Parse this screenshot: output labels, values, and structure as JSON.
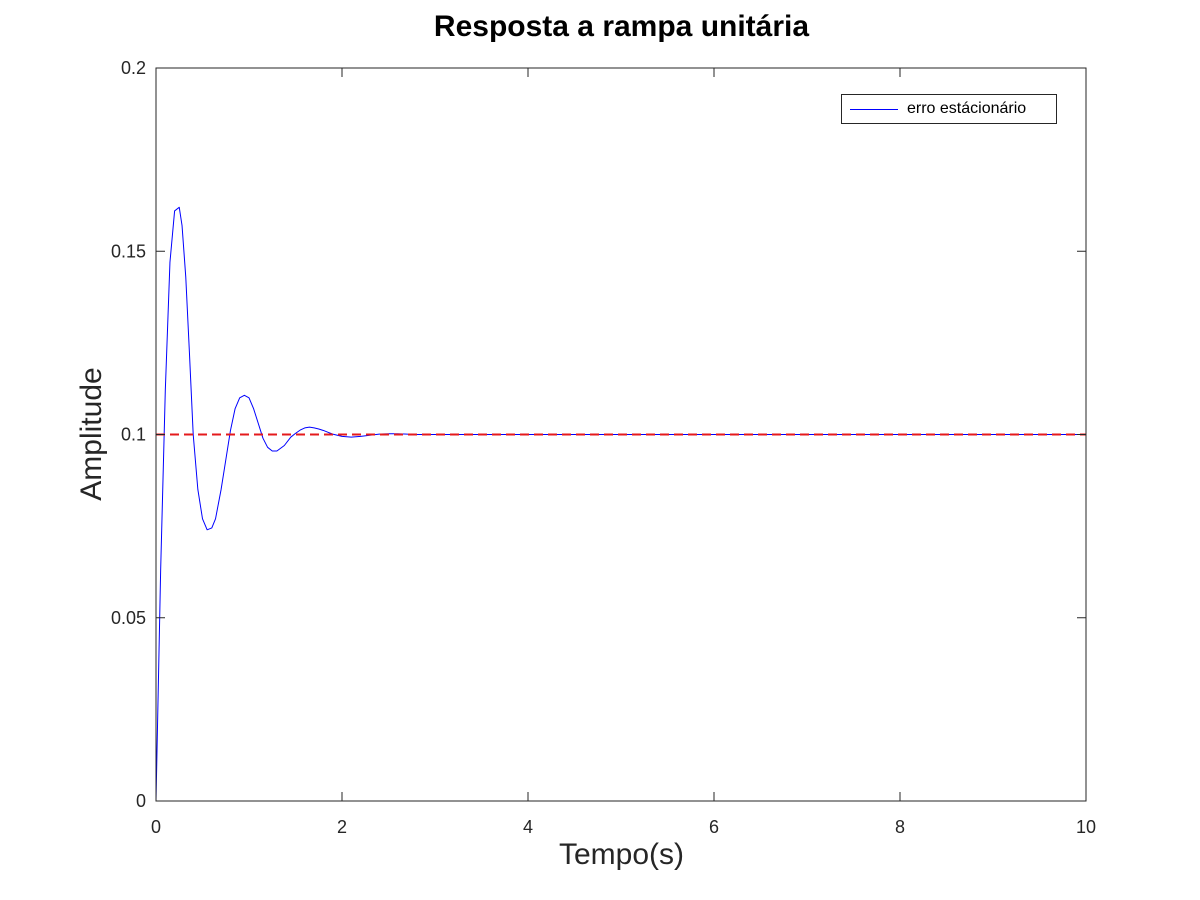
{
  "chart_data": {
    "type": "line",
    "title": "Resposta a rampa unitária",
    "xlabel": "Tempo(s)",
    "ylabel": "Amplitude",
    "xlim": [
      0,
      10
    ],
    "ylim": [
      0,
      0.2
    ],
    "x_ticks": [
      0,
      2,
      4,
      6,
      8,
      10
    ],
    "x_tick_labels": [
      "0",
      "2",
      "4",
      "6",
      "8",
      "10"
    ],
    "y_ticks": [
      0,
      0.05,
      0.1,
      0.15,
      0.2
    ],
    "y_tick_labels": [
      "0",
      "0.05",
      "0.1",
      "0.15",
      "0.2"
    ],
    "grid": false,
    "legend_position": "top-right",
    "legend": [
      "erro estácionário"
    ],
    "series": [
      {
        "name": "erro estácionário",
        "color": "#0000ff",
        "style": "solid",
        "x": [
          0,
          0.05,
          0.1,
          0.15,
          0.2,
          0.25,
          0.28,
          0.32,
          0.36,
          0.4,
          0.45,
          0.5,
          0.55,
          0.6,
          0.64,
          0.7,
          0.75,
          0.8,
          0.85,
          0.9,
          0.95,
          1.0,
          1.05,
          1.1,
          1.15,
          1.2,
          1.25,
          1.3,
          1.38,
          1.45,
          1.5,
          1.55,
          1.6,
          1.65,
          1.7,
          1.75,
          1.8,
          1.85,
          1.9,
          1.95,
          2.0,
          2.1,
          2.2,
          2.3,
          2.4,
          2.5,
          2.6,
          2.7,
          2.8,
          2.9,
          3.0,
          4.0,
          6.0,
          8.0,
          10.0
        ],
        "y": [
          0,
          0.063,
          0.112,
          0.147,
          0.161,
          0.162,
          0.157,
          0.143,
          0.122,
          0.1,
          0.085,
          0.077,
          0.074,
          0.0745,
          0.077,
          0.085,
          0.093,
          0.101,
          0.107,
          0.11,
          0.1107,
          0.11,
          0.107,
          0.103,
          0.099,
          0.0965,
          0.0955,
          0.0955,
          0.097,
          0.0993,
          0.1003,
          0.1012,
          0.1018,
          0.102,
          0.1018,
          0.1015,
          0.1011,
          0.1006,
          0.1001,
          0.0998,
          0.0995,
          0.0993,
          0.0995,
          0.0998,
          0.1001,
          0.1002,
          0.1002,
          0.1001,
          0.1,
          0.1,
          0.1,
          0.1,
          0.1,
          0.1,
          0.1
        ]
      },
      {
        "name": "",
        "color": "#e41a1c",
        "style": "dashed",
        "x": [
          0,
          10
        ],
        "y": [
          0.1,
          0.1
        ]
      }
    ]
  }
}
